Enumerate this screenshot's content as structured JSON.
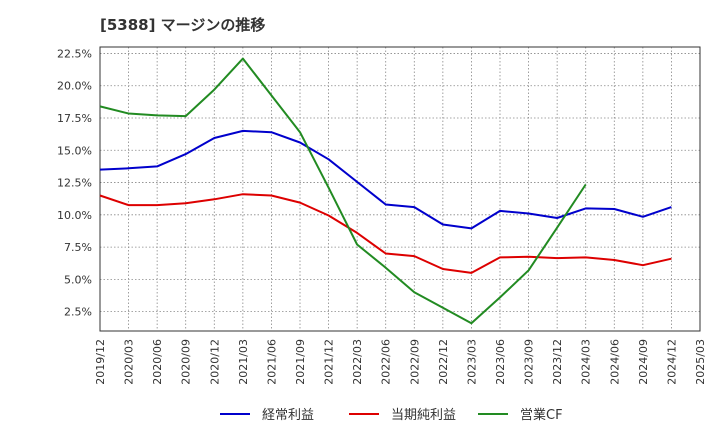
{
  "chart_data": {
    "type": "line",
    "title": "[5388]  マージンの推移",
    "x": [
      "2019/12",
      "2020/03",
      "2020/06",
      "2020/09",
      "2020/12",
      "2021/03",
      "2021/06",
      "2021/09",
      "2021/12",
      "2022/03",
      "2022/06",
      "2022/09",
      "2022/12",
      "2023/03",
      "2023/06",
      "2023/09",
      "2023/12",
      "2024/03",
      "2024/06",
      "2024/09",
      "2024/12",
      "2025/03"
    ],
    "ylim": [
      1.0,
      23.0
    ],
    "yticks": [
      2.5,
      5.0,
      7.5,
      10.0,
      12.5,
      15.0,
      17.5,
      20.0,
      22.5
    ],
    "ytick_labels": [
      "2.5%",
      "5.0%",
      "7.5%",
      "10.0%",
      "12.5%",
      "15.0%",
      "17.5%",
      "20.0%",
      "22.5%"
    ],
    "grid": true,
    "legend_position": "bottom",
    "series": [
      {
        "name": "経常利益",
        "color": "#0000cc",
        "values": [
          13.5,
          13.6,
          13.75,
          14.7,
          15.95,
          16.5,
          16.4,
          15.6,
          14.3,
          12.55,
          10.8,
          10.6,
          9.25,
          8.95,
          10.3,
          10.1,
          9.75,
          10.5,
          10.45,
          9.85,
          10.6,
          null
        ]
      },
      {
        "name": "当期純利益",
        "color": "#dd0000",
        "values": [
          11.5,
          10.75,
          10.75,
          10.9,
          11.2,
          11.6,
          11.5,
          10.95,
          9.95,
          8.6,
          7.0,
          6.8,
          5.8,
          5.5,
          6.7,
          6.75,
          6.65,
          6.7,
          6.5,
          6.1,
          6.6,
          null
        ]
      },
      {
        "name": "営業CF",
        "color": "#228b22",
        "values": [
          18.4,
          17.85,
          17.7,
          17.65,
          19.7,
          22.1,
          19.25,
          16.4,
          12.1,
          7.7,
          5.9,
          4.0,
          2.8,
          1.6,
          3.6,
          5.7,
          9.0,
          12.35,
          null,
          null,
          null,
          null
        ]
      }
    ]
  }
}
